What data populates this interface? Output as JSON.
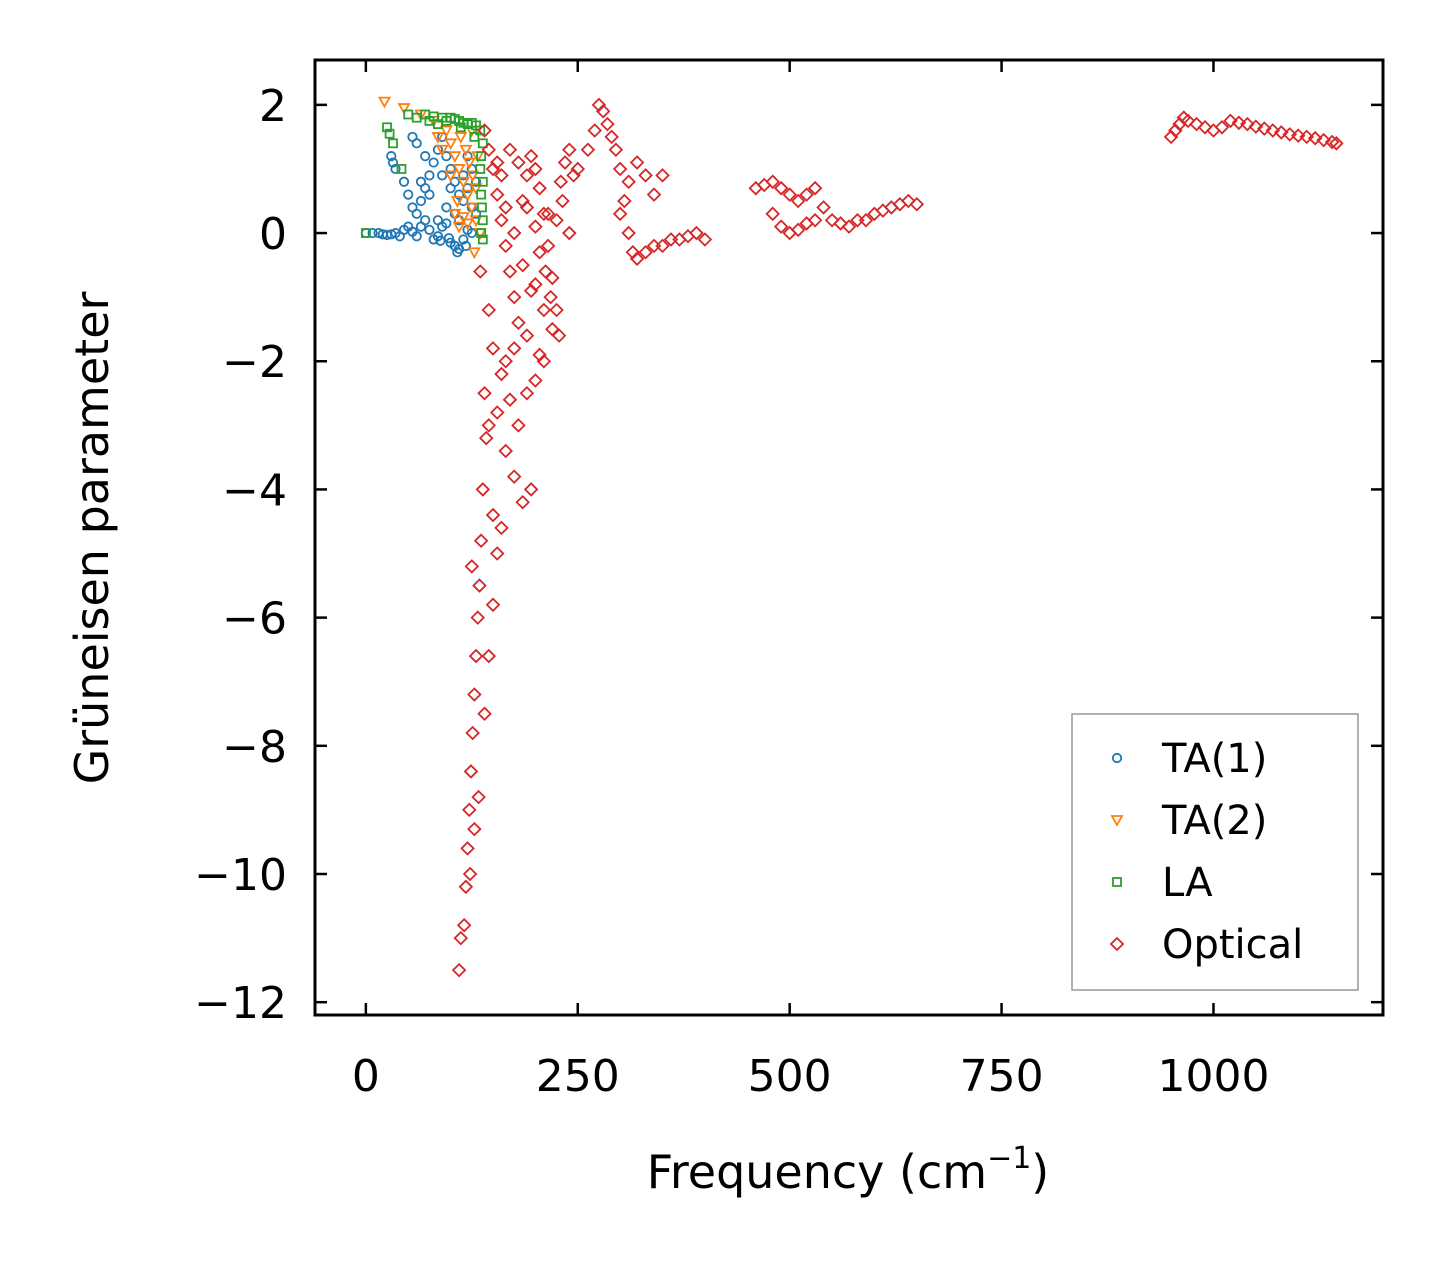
{
  "chart_data": {
    "type": "scatter",
    "title": "",
    "xlabel": "Frequency (cm",
    "xlabel_sup": "−1",
    "xlabel_suffix": ")",
    "ylabel": "Grüneisen parameter",
    "xlim": [
      -60,
      1200
    ],
    "ylim": [
      -12.2,
      2.7
    ],
    "xticks": [
      0,
      250,
      500,
      750,
      1000
    ],
    "xtick_labels": [
      "0",
      "250",
      "500",
      "750",
      "1000"
    ],
    "yticks": [
      2,
      0,
      -2,
      -4,
      -6,
      -8,
      -10,
      -12
    ],
    "ytick_labels": [
      "2",
      "0",
      "−2",
      "−4",
      "−6",
      "−8",
      "−10",
      "−12"
    ],
    "grid": false,
    "legend_position": "lower-right",
    "series": [
      {
        "name": "TA(1)",
        "marker": "circle",
        "color": "#1f77b4",
        "points": [
          [
            0,
            0
          ],
          [
            8,
            0
          ],
          [
            15,
            0
          ],
          [
            20,
            -0.02
          ],
          [
            25,
            -0.03
          ],
          [
            30,
            -0.02
          ],
          [
            35,
            0
          ],
          [
            40,
            -0.05
          ],
          [
            45,
            0.05
          ],
          [
            50,
            0.1
          ],
          [
            55,
            0.02
          ],
          [
            60,
            -0.05
          ],
          [
            65,
            0.1
          ],
          [
            70,
            0.2
          ],
          [
            75,
            0.05
          ],
          [
            80,
            -0.1
          ],
          [
            85,
            -0.05
          ],
          [
            90,
            0.1
          ],
          [
            95,
            0.15
          ],
          [
            100,
            -0.15
          ],
          [
            105,
            -0.2
          ],
          [
            110,
            -0.25
          ],
          [
            115,
            -0.1
          ],
          [
            120,
            0.05
          ],
          [
            125,
            0
          ],
          [
            30,
            1.2
          ],
          [
            32,
            1.1
          ],
          [
            35,
            1.0
          ],
          [
            45,
            0.8
          ],
          [
            50,
            0.6
          ],
          [
            55,
            0.4
          ],
          [
            60,
            0.3
          ],
          [
            65,
            0.5
          ],
          [
            70,
            0.7
          ],
          [
            75,
            0.9
          ],
          [
            80,
            1.1
          ],
          [
            85,
            1.3
          ],
          [
            90,
            1.5
          ],
          [
            95,
            1.2
          ],
          [
            100,
            1.0
          ],
          [
            105,
            0.8
          ],
          [
            110,
            0.6
          ],
          [
            115,
            0.9
          ],
          [
            120,
            1.2
          ],
          [
            125,
            1.0
          ],
          [
            130,
            0.8
          ],
          [
            55,
            1.5
          ],
          [
            60,
            1.4
          ],
          [
            70,
            1.2
          ],
          [
            85,
            0.2
          ],
          [
            95,
            0.4
          ],
          [
            105,
            0.3
          ],
          [
            115,
            0.5
          ],
          [
            120,
            0.7
          ],
          [
            125,
            0.4
          ],
          [
            130,
            0.3
          ],
          [
            65,
            0.8
          ],
          [
            75,
            0.6
          ],
          [
            90,
            0.9
          ],
          [
            100,
            0.7
          ],
          [
            110,
            0.2
          ],
          [
            88,
            -0.12
          ],
          [
            98,
            -0.08
          ],
          [
            108,
            -0.3
          ],
          [
            118,
            -0.2
          ]
        ]
      },
      {
        "name": "TA(2)",
        "marker": "triangle-down",
        "color": "#ff7f0e",
        "points": [
          [
            22,
            2.05
          ],
          [
            45,
            1.95
          ],
          [
            65,
            1.85
          ],
          [
            80,
            1.75
          ],
          [
            95,
            1.6
          ],
          [
            100,
            1.4
          ],
          [
            105,
            1.2
          ],
          [
            110,
            1.0
          ],
          [
            115,
            0.8
          ],
          [
            120,
            0.6
          ],
          [
            125,
            0.4
          ],
          [
            130,
            0.2
          ],
          [
            135,
            0
          ],
          [
            128,
            -0.3
          ],
          [
            112,
            1.5
          ],
          [
            118,
            1.3
          ],
          [
            122,
            1.1
          ],
          [
            126,
            0.9
          ],
          [
            130,
            0.7
          ],
          [
            105,
            0.3
          ],
          [
            110,
            0.1
          ],
          [
            115,
            0.25
          ],
          [
            120,
            0.15
          ],
          [
            85,
            1.5
          ],
          [
            90,
            1.3
          ],
          [
            100,
            0.9
          ],
          [
            125,
            1.6
          ],
          [
            132,
            1.2
          ],
          [
            108,
            0.5
          ]
        ]
      },
      {
        "name": "LA",
        "marker": "square",
        "color": "#2ca02c",
        "points": [
          [
            0,
            0
          ],
          [
            25,
            1.65
          ],
          [
            28,
            1.55
          ],
          [
            32,
            1.4
          ],
          [
            42,
            1.0
          ],
          [
            50,
            1.85
          ],
          [
            60,
            1.8
          ],
          [
            70,
            1.85
          ],
          [
            80,
            1.82
          ],
          [
            90,
            1.8
          ],
          [
            95,
            1.75
          ],
          [
            100,
            1.8
          ],
          [
            105,
            1.78
          ],
          [
            110,
            1.75
          ],
          [
            115,
            1.72
          ],
          [
            120,
            1.7
          ],
          [
            125,
            1.72
          ],
          [
            130,
            1.68
          ],
          [
            135,
            1.6
          ],
          [
            138,
            1.4
          ],
          [
            136,
            1.2
          ],
          [
            135,
            1.0
          ],
          [
            138,
            0.8
          ],
          [
            136,
            0.6
          ],
          [
            137,
            0.4
          ],
          [
            138,
            0.2
          ],
          [
            136,
            0
          ],
          [
            138,
            -0.1
          ],
          [
            85,
            1.7
          ],
          [
            75,
            1.75
          ],
          [
            112,
            1.65
          ],
          [
            128,
            1.5
          ]
        ]
      },
      {
        "name": "Optical",
        "marker": "diamond",
        "color": "#d62728",
        "points": [
          [
            140,
            1.6
          ],
          [
            145,
            1.3
          ],
          [
            150,
            1.0
          ],
          [
            155,
            0.6
          ],
          [
            160,
            0.2
          ],
          [
            165,
            -0.2
          ],
          [
            170,
            -0.6
          ],
          [
            175,
            -1.0
          ],
          [
            180,
            -1.4
          ],
          [
            185,
            0.5
          ],
          [
            190,
            0.9
          ],
          [
            195,
            1.2
          ],
          [
            200,
            1.0
          ],
          [
            205,
            0.7
          ],
          [
            210,
            0.3
          ],
          [
            215,
            -0.2
          ],
          [
            220,
            -0.7
          ],
          [
            225,
            -1.2
          ],
          [
            228,
            -1.6
          ],
          [
            230,
            0.8
          ],
          [
            235,
            1.1
          ],
          [
            240,
            1.3
          ],
          [
            245,
            0.9
          ],
          [
            150,
            -1.8
          ],
          [
            160,
            -2.2
          ],
          [
            170,
            -2.6
          ],
          [
            180,
            -3.0
          ],
          [
            190,
            -2.5
          ],
          [
            200,
            -2.3
          ],
          [
            145,
            -1.2
          ],
          [
            155,
            -2.8
          ],
          [
            165,
            -3.4
          ],
          [
            175,
            -3.8
          ],
          [
            185,
            -4.2
          ],
          [
            195,
            -4.0
          ],
          [
            210,
            -2.0
          ],
          [
            220,
            -1.5
          ],
          [
            135,
            -0.6
          ],
          [
            140,
            -2.5
          ],
          [
            142,
            -3.2
          ],
          [
            138,
            -4.0
          ],
          [
            136,
            -4.8
          ],
          [
            134,
            -5.5
          ],
          [
            132,
            -6.0
          ],
          [
            130,
            -6.6
          ],
          [
            128,
            -7.2
          ],
          [
            126,
            -7.8
          ],
          [
            124,
            -8.4
          ],
          [
            122,
            -9.0
          ],
          [
            120,
            -9.6
          ],
          [
            118,
            -10.2
          ],
          [
            116,
            -10.8
          ],
          [
            112,
            -11.0
          ],
          [
            110,
            -11.5
          ],
          [
            125,
            -5.2
          ],
          [
            150,
            -5.8
          ],
          [
            155,
            -5.0
          ],
          [
            160,
            -4.6
          ],
          [
            145,
            -6.6
          ],
          [
            140,
            -7.5
          ],
          [
            150,
            -4.4
          ],
          [
            133,
            -8.8
          ],
          [
            128,
            -9.3
          ],
          [
            123,
            -10.0
          ],
          [
            145,
            -3.0
          ],
          [
            165,
            -2.0
          ],
          [
            175,
            -1.8
          ],
          [
            200,
            -0.8
          ],
          [
            210,
            -1.2
          ],
          [
            215,
            0.3
          ],
          [
            170,
            1.3
          ],
          [
            180,
            1.1
          ],
          [
            190,
            0.4
          ],
          [
            200,
            0.1
          ],
          [
            205,
            -0.3
          ],
          [
            160,
            0.9
          ],
          [
            165,
            0.4
          ],
          [
            175,
            0.0
          ],
          [
            185,
            -0.5
          ],
          [
            195,
            -0.9
          ],
          [
            155,
            1.1
          ],
          [
            190,
            -1.6
          ],
          [
            205,
            -1.9
          ],
          [
            212,
            -0.6
          ],
          [
            218,
            -1.0
          ],
          [
            225,
            0.2
          ],
          [
            232,
            0.5
          ],
          [
            240,
            0.0
          ],
          [
            250,
            1.0
          ],
          [
            262,
            1.3
          ],
          [
            270,
            1.6
          ],
          [
            275,
            2.0
          ],
          [
            280,
            1.9
          ],
          [
            285,
            1.7
          ],
          [
            290,
            1.5
          ],
          [
            295,
            1.3
          ],
          [
            300,
            1.0
          ],
          [
            305,
            0.5
          ],
          [
            310,
            0.0
          ],
          [
            315,
            -0.3
          ],
          [
            320,
            -0.4
          ],
          [
            330,
            -0.3
          ],
          [
            340,
            -0.2
          ],
          [
            350,
            -0.2
          ],
          [
            360,
            -0.1
          ],
          [
            370,
            -0.1
          ],
          [
            380,
            -0.05
          ],
          [
            390,
            0.0
          ],
          [
            400,
            -0.1
          ],
          [
            300,
            0.3
          ],
          [
            310,
            0.8
          ],
          [
            320,
            1.1
          ],
          [
            330,
            0.9
          ],
          [
            340,
            0.6
          ],
          [
            350,
            0.9
          ],
          [
            460,
            0.7
          ],
          [
            470,
            0.75
          ],
          [
            480,
            0.8
          ],
          [
            490,
            0.7
          ],
          [
            500,
            0.6
          ],
          [
            510,
            0.5
          ],
          [
            520,
            0.6
          ],
          [
            530,
            0.7
          ],
          [
            540,
            0.4
          ],
          [
            550,
            0.2
          ],
          [
            560,
            0.15
          ],
          [
            570,
            0.1
          ],
          [
            580,
            0.2
          ],
          [
            590,
            0.2
          ],
          [
            600,
            0.3
          ],
          [
            610,
            0.35
          ],
          [
            620,
            0.4
          ],
          [
            630,
            0.45
          ],
          [
            640,
            0.5
          ],
          [
            650,
            0.45
          ],
          [
            480,
            0.3
          ],
          [
            490,
            0.1
          ],
          [
            500,
            0.0
          ],
          [
            510,
            0.05
          ],
          [
            520,
            0.15
          ],
          [
            530,
            0.2
          ],
          [
            950,
            1.5
          ],
          [
            955,
            1.6
          ],
          [
            960,
            1.7
          ],
          [
            965,
            1.8
          ],
          [
            970,
            1.75
          ],
          [
            980,
            1.7
          ],
          [
            990,
            1.65
          ],
          [
            1000,
            1.6
          ],
          [
            1010,
            1.65
          ],
          [
            1020,
            1.75
          ],
          [
            1030,
            1.72
          ],
          [
            1040,
            1.7
          ],
          [
            1050,
            1.66
          ],
          [
            1060,
            1.63
          ],
          [
            1070,
            1.6
          ],
          [
            1080,
            1.57
          ],
          [
            1090,
            1.54
          ],
          [
            1100,
            1.52
          ],
          [
            1110,
            1.5
          ],
          [
            1120,
            1.48
          ],
          [
            1130,
            1.45
          ],
          [
            1140,
            1.42
          ],
          [
            1145,
            1.4
          ]
        ]
      }
    ]
  }
}
